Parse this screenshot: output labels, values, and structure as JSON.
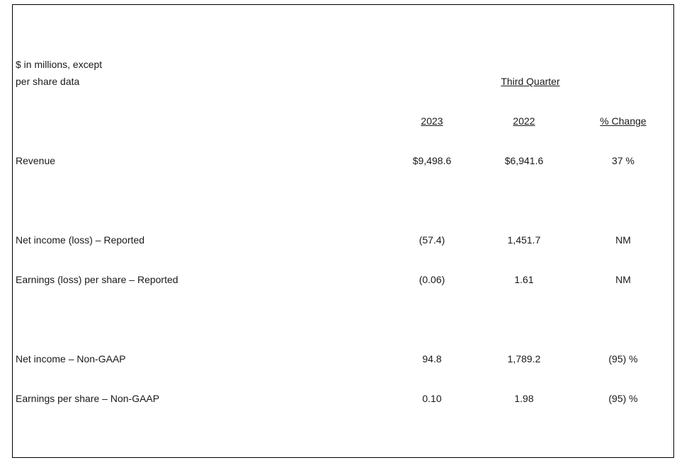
{
  "table": {
    "unit_label_line1": "$ in millions, except",
    "unit_label_line2": "per share data",
    "period_header": "Third Quarter",
    "columns": [
      "2023",
      "2022",
      "% Change"
    ],
    "rows": [
      {
        "label": "Revenue",
        "v2023": "$9,498.6",
        "v2022": "$6,941.6",
        "change": "37 %"
      },
      {
        "label": "Net income (loss) – Reported",
        "v2023": "(57.4)",
        "v2022": "1,451.7",
        "change": "NM"
      },
      {
        "label": "Earnings (loss) per share – Reported",
        "v2023": "(0.06)",
        "v2022": "1.61",
        "change": "NM"
      },
      {
        "label": "Net income – Non-GAAP",
        "v2023": "94.8",
        "v2022": "1,789.2",
        "change": "(95) %"
      },
      {
        "label": "Earnings per share – Non-GAAP",
        "v2023": "0.10",
        "v2022": "1.98",
        "change": "(95) %"
      }
    ]
  }
}
